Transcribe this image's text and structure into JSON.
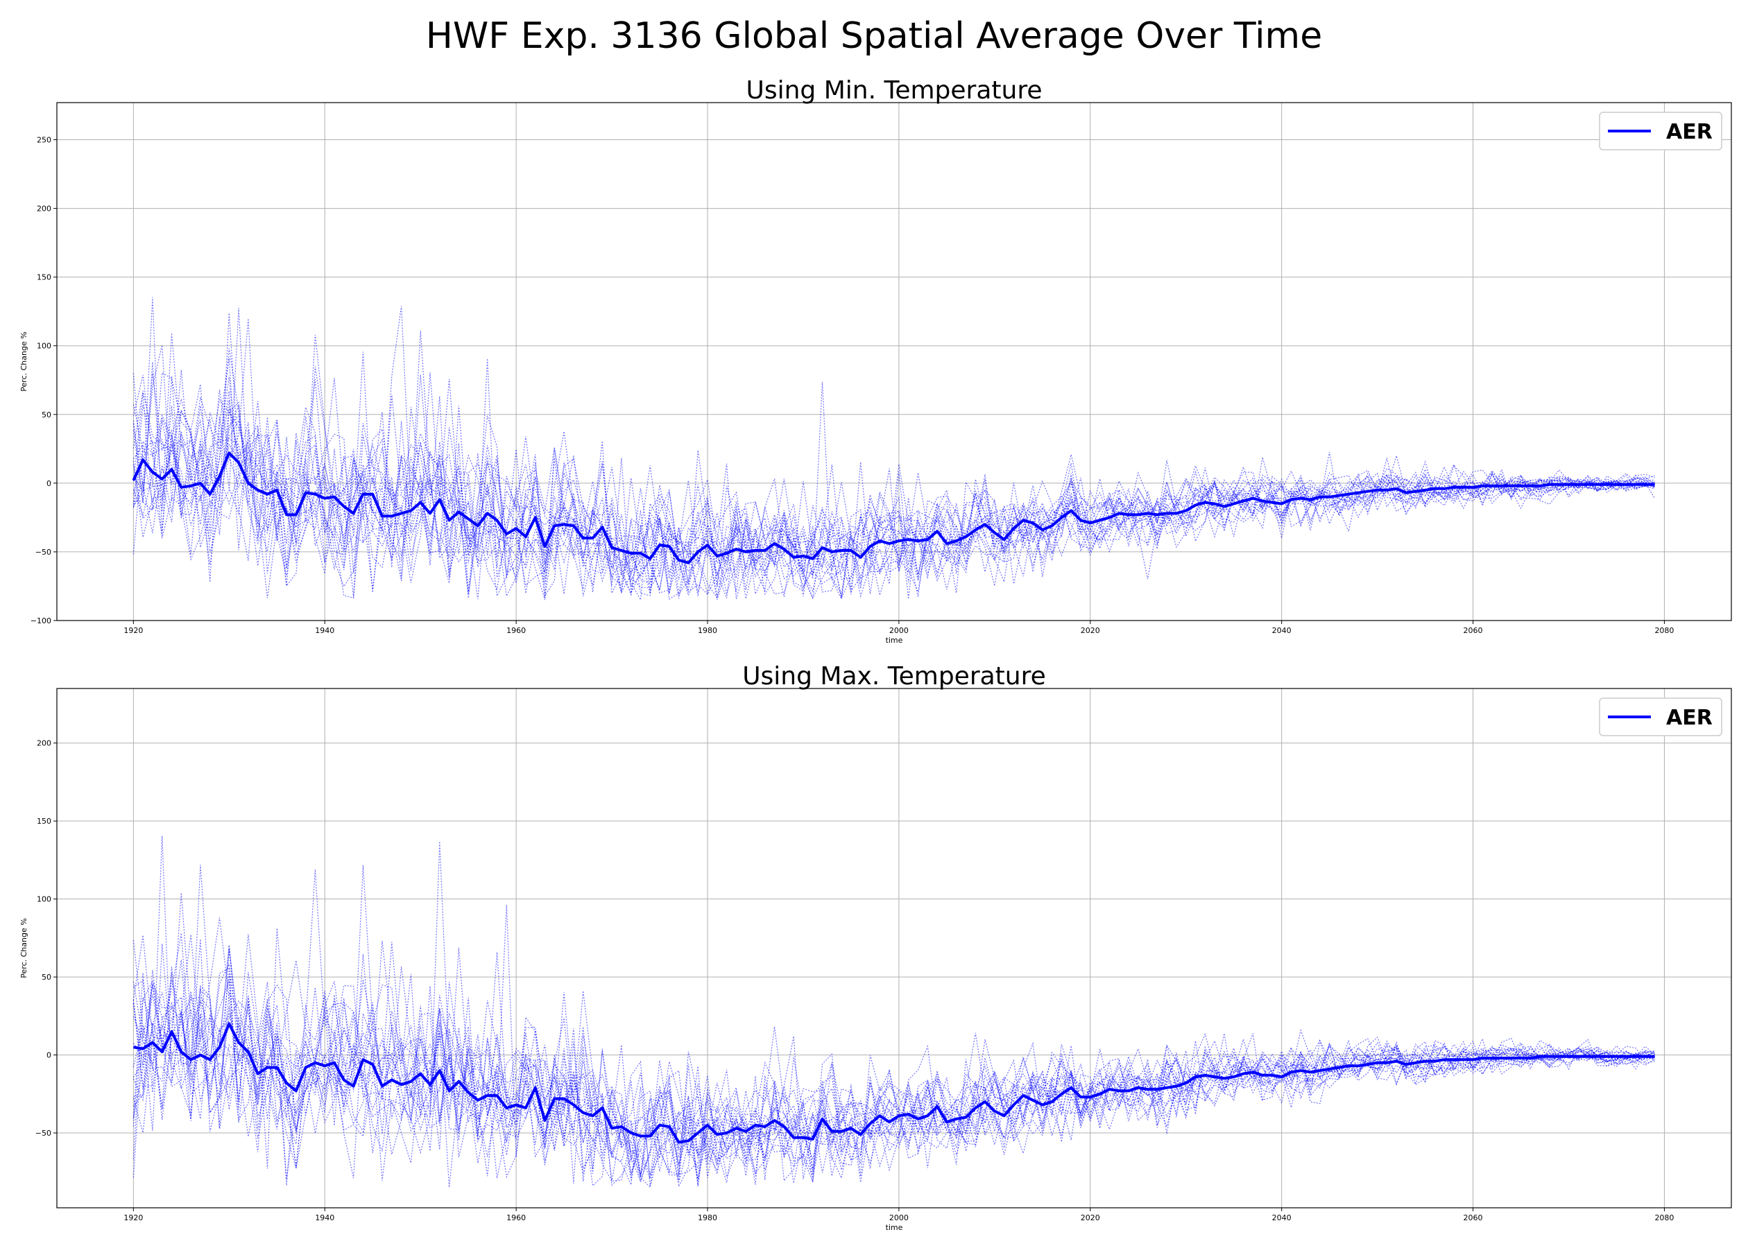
{
  "suptitle": "HWF Exp. 3136 Global Spatial Average Over Time",
  "colors": {
    "series": "#0000ff",
    "grid": "#b0b0b0"
  },
  "chart_data": [
    {
      "type": "line",
      "title": "Using Min. Temperature",
      "xlabel": "time",
      "ylabel": "Perc. Change %",
      "xlim": [
        1912,
        2087
      ],
      "ylim": [
        -100,
        277
      ],
      "xticks": [
        1920,
        1940,
        1960,
        1980,
        2000,
        2020,
        2040,
        2060,
        2080
      ],
      "yticks": [
        -100,
        -50,
        0,
        50,
        100,
        150,
        200,
        250
      ],
      "ytick_labels": [
        "−100",
        "−50",
        "0",
        "50",
        "100",
        "150",
        "200",
        "250"
      ],
      "grid": true,
      "legend": {
        "position": "top-right",
        "entries": [
          "AER"
        ]
      },
      "ensemble": {
        "members": 20,
        "style": "dotted",
        "seed": 3136,
        "amp_scale": 1.0
      },
      "series": [
        {
          "name": "AER",
          "style": "solid-bold",
          "x_start": 1920,
          "x_step": 1,
          "values": [
            2,
            17,
            8,
            3,
            10,
            -3,
            -2,
            0,
            -8,
            5,
            22,
            15,
            0,
            -5,
            -8,
            -5,
            -23,
            -23,
            -7,
            -8,
            -11,
            -10,
            -17,
            -22,
            -8,
            -8,
            -24,
            -24,
            -22,
            -20,
            -14,
            -22,
            -12,
            -27,
            -21,
            -26,
            -31,
            -22,
            -27,
            -37,
            -33,
            -39,
            -25,
            -46,
            -31,
            -30,
            -31,
            -40,
            -40,
            -32,
            -47,
            -49,
            -51,
            -51,
            -55,
            -45,
            -46,
            -56,
            -58,
            -50,
            -45,
            -53,
            -51,
            -48,
            -50,
            -49,
            -49,
            -44,
            -48,
            -54,
            -53,
            -55,
            -47,
            -50,
            -49,
            -49,
            -54,
            -46,
            -42,
            -44,
            -42,
            -41,
            -42,
            -41,
            -35,
            -44,
            -42,
            -39,
            -34,
            -30,
            -36,
            -41,
            -33,
            -27,
            -29,
            -34,
            -31,
            -25,
            -20,
            -27,
            -29,
            -27,
            -25,
            -22,
            -23,
            -23,
            -22,
            -23,
            -22,
            -22,
            -20,
            -16,
            -14,
            -15,
            -17,
            -15,
            -13,
            -11,
            -13,
            -14,
            -15,
            -12,
            -11,
            -12,
            -10,
            -10,
            -9,
            -8,
            -7,
            -6,
            -5,
            -5,
            -4,
            -7,
            -6,
            -5,
            -4,
            -4,
            -3,
            -3,
            -3,
            -2,
            -2,
            -2,
            -2,
            -2,
            -2,
            -2,
            -1,
            -1,
            -1,
            -1,
            -1,
            -1,
            -1,
            -1,
            -1,
            -1,
            -1,
            -1
          ]
        }
      ]
    },
    {
      "type": "line",
      "title": "Using Max. Temperature",
      "xlabel": "time",
      "ylabel": "Perc. Change %",
      "xlim": [
        1912,
        2087
      ],
      "ylim": [
        -98,
        235
      ],
      "xticks": [
        1920,
        1940,
        1960,
        1980,
        2000,
        2020,
        2040,
        2060,
        2080
      ],
      "yticks": [
        -50,
        0,
        50,
        100,
        150,
        200
      ],
      "ytick_labels": [
        "−50",
        "0",
        "50",
        "100",
        "150",
        "200"
      ],
      "grid": true,
      "legend": {
        "position": "top-right",
        "entries": [
          "AER"
        ]
      },
      "ensemble": {
        "members": 20,
        "style": "dotted",
        "seed": 7241,
        "amp_scale": 0.9
      },
      "series": [
        {
          "name": "AER",
          "style": "solid-bold",
          "x_start": 1920,
          "x_step": 1,
          "values": [
            5,
            4,
            8,
            2,
            15,
            2,
            -3,
            0,
            -3,
            5,
            20,
            8,
            2,
            -12,
            -8,
            -8,
            -18,
            -23,
            -8,
            -5,
            -7,
            -5,
            -16,
            -20,
            -3,
            -6,
            -20,
            -16,
            -19,
            -17,
            -12,
            -19,
            -10,
            -23,
            -17,
            -24,
            -29,
            -26,
            -26,
            -34,
            -32,
            -34,
            -21,
            -42,
            -28,
            -28,
            -32,
            -37,
            -39,
            -34,
            -47,
            -46,
            -50,
            -52,
            -52,
            -45,
            -46,
            -56,
            -55,
            -50,
            -45,
            -51,
            -50,
            -47,
            -49,
            -45,
            -46,
            -42,
            -46,
            -53,
            -53,
            -54,
            -41,
            -49,
            -49,
            -47,
            -51,
            -44,
            -39,
            -43,
            -39,
            -38,
            -41,
            -39,
            -33,
            -43,
            -41,
            -40,
            -34,
            -30,
            -36,
            -39,
            -32,
            -26,
            -29,
            -32,
            -30,
            -25,
            -21,
            -27,
            -27,
            -25,
            -22,
            -23,
            -23,
            -21,
            -22,
            -22,
            -21,
            -20,
            -18,
            -14,
            -13,
            -14,
            -15,
            -14,
            -12,
            -11,
            -13,
            -13,
            -14,
            -11,
            -10,
            -11,
            -10,
            -9,
            -8,
            -7,
            -7,
            -6,
            -5,
            -5,
            -4,
            -6,
            -5,
            -4,
            -4,
            -3,
            -3,
            -3,
            -3,
            -2,
            -2,
            -2,
            -2,
            -2,
            -2,
            -1,
            -1,
            -1,
            -1,
            -1,
            -1,
            -1,
            -1,
            -1,
            -1,
            -1,
            -1,
            -1
          ]
        }
      ]
    }
  ]
}
